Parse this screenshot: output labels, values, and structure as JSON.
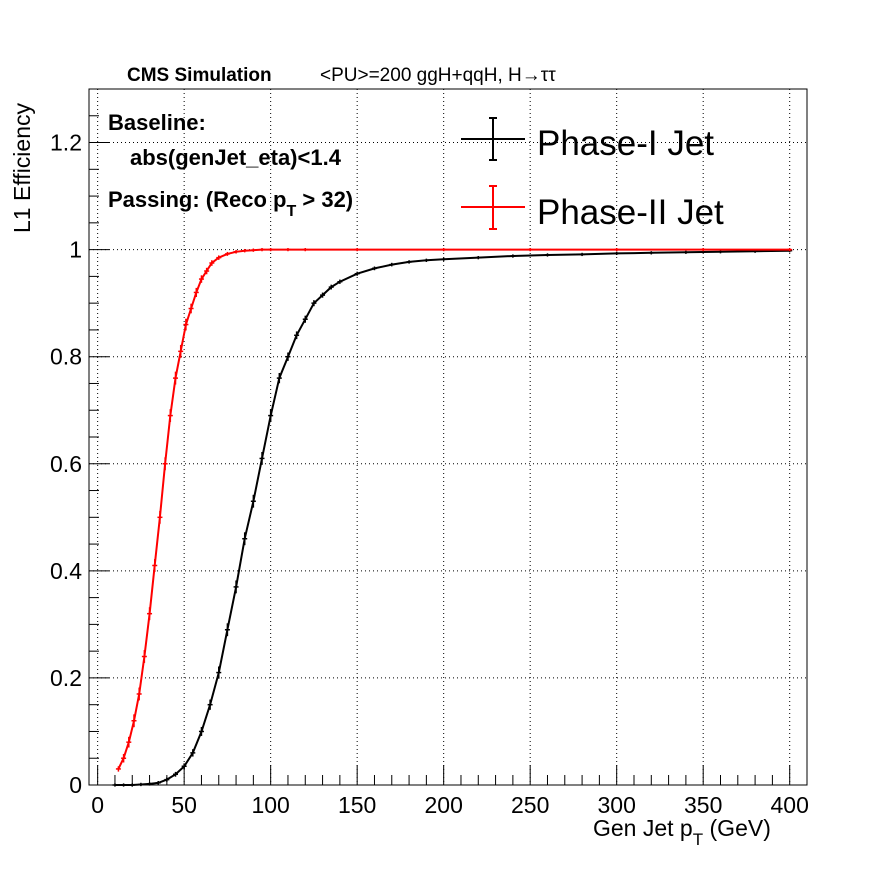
{
  "chart_data": {
    "type": "line",
    "title": "CMS Simulation  <PU>=200  ggH+qqH, H→ττ",
    "title_bold": "CMS Simulation",
    "title_rest": "<PU>=200  ggH+qqH, H→ττ",
    "xlabel_main": "Gen Jet p",
    "xlabel_sub": "T",
    "xlabel_unit": " (GeV)",
    "ylabel": "L1 Efficiency",
    "xlim": [
      -5,
      410
    ],
    "ylim": [
      0,
      1.3
    ],
    "xticks": [
      0,
      50,
      100,
      150,
      200,
      250,
      300,
      350,
      400
    ],
    "yticks": [
      0,
      0.2,
      0.4,
      0.6,
      0.8,
      1
    ],
    "ytick_labels": [
      "0",
      "0.2",
      "0.4",
      "0.6",
      "0.8",
      "1"
    ],
    "ytick_top": 1.2,
    "ytick_top_label": "1.2",
    "grid": true,
    "legend_position": "top-right",
    "annotations": {
      "baseline_label": "Baseline:",
      "baseline_cut": "abs(genJet_eta)<1.4",
      "passing_prefix": "Passing: (Reco p",
      "passing_sub": "T",
      "passing_suffix": " > 32)"
    },
    "series": [
      {
        "name": "Phase-I Jet",
        "color": "#000000",
        "x": [
          10,
          15,
          20,
          25,
          30,
          35,
          40,
          45,
          50,
          55,
          60,
          65,
          70,
          75,
          80,
          85,
          90,
          95,
          100,
          105,
          110,
          115,
          120,
          125,
          130,
          135,
          140,
          150,
          160,
          170,
          180,
          190,
          200,
          220,
          240,
          260,
          280,
          300,
          320,
          340,
          360,
          380,
          400
        ],
        "y": [
          0.0,
          0.0,
          0.0,
          0.001,
          0.002,
          0.004,
          0.01,
          0.02,
          0.035,
          0.06,
          0.1,
          0.15,
          0.21,
          0.29,
          0.37,
          0.46,
          0.53,
          0.61,
          0.69,
          0.76,
          0.8,
          0.84,
          0.87,
          0.9,
          0.915,
          0.93,
          0.94,
          0.955,
          0.965,
          0.972,
          0.977,
          0.98,
          0.982,
          0.985,
          0.988,
          0.99,
          0.991,
          0.993,
          0.994,
          0.995,
          0.996,
          0.997,
          0.998
        ]
      },
      {
        "name": "Phase-II Jet",
        "color": "#ff0000",
        "x": [
          12,
          15,
          18,
          21,
          24,
          27,
          30,
          33,
          36,
          39,
          42,
          45,
          48,
          51,
          54,
          57,
          60,
          63,
          66,
          70,
          75,
          80,
          85,
          90,
          95,
          100,
          110,
          120,
          150,
          200,
          250,
          300,
          350,
          400
        ],
        "y": [
          0.03,
          0.05,
          0.08,
          0.12,
          0.17,
          0.24,
          0.32,
          0.41,
          0.5,
          0.6,
          0.69,
          0.76,
          0.81,
          0.86,
          0.89,
          0.92,
          0.945,
          0.96,
          0.975,
          0.985,
          0.992,
          0.996,
          0.998,
          0.999,
          1.0,
          1.0,
          1.0,
          1.0,
          1.0,
          1.0,
          1.0,
          1.0,
          1.0,
          1.0
        ]
      }
    ]
  }
}
